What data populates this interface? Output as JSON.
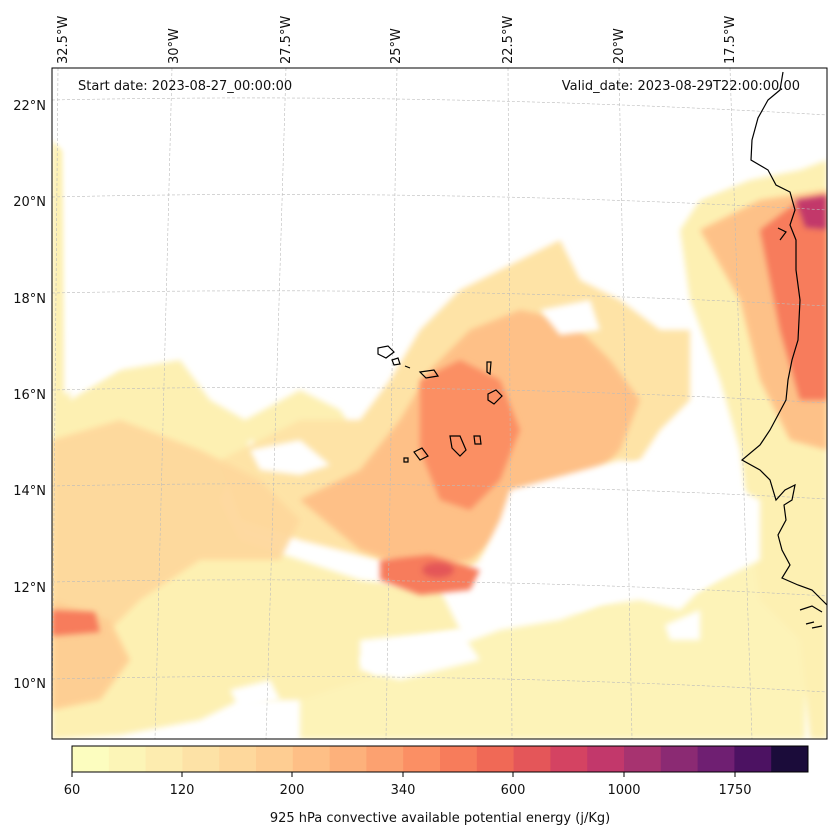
{
  "map": {
    "start_date_text": "Start date: 2023-08-27_00:00:00",
    "valid_date_text": "Valid_date: 2023-08-29T22:00:00.00",
    "lon_labels": [
      "32.5°W",
      "30°W",
      "27.5°W",
      "25°W",
      "22.5°W",
      "20°W",
      "17.5°W"
    ],
    "lat_labels": [
      "22°N",
      "20°N",
      "18°N",
      "16°N",
      "14°N",
      "12°N",
      "10°N"
    ],
    "grid": true,
    "coastline": true
  },
  "colorbar": {
    "label": "925 hPa convective available potential energy (j/Kg)",
    "tick_labels": [
      "60",
      "120",
      "200",
      "340",
      "600",
      "1000",
      "1750"
    ],
    "colors": [
      "#fcfdbf",
      "#fcf5b7",
      "#fdecaf",
      "#fde2a6",
      "#fed89c",
      "#fecd92",
      "#febf86",
      "#fdb17b",
      "#fca170",
      "#fb8f64",
      "#f77c5b",
      "#f06956",
      "#e45659",
      "#d44362",
      "#c2386b",
      "#a73370",
      "#8b2a73",
      "#6f1f72",
      "#4c1262",
      "#1b0c3a"
    ]
  }
}
